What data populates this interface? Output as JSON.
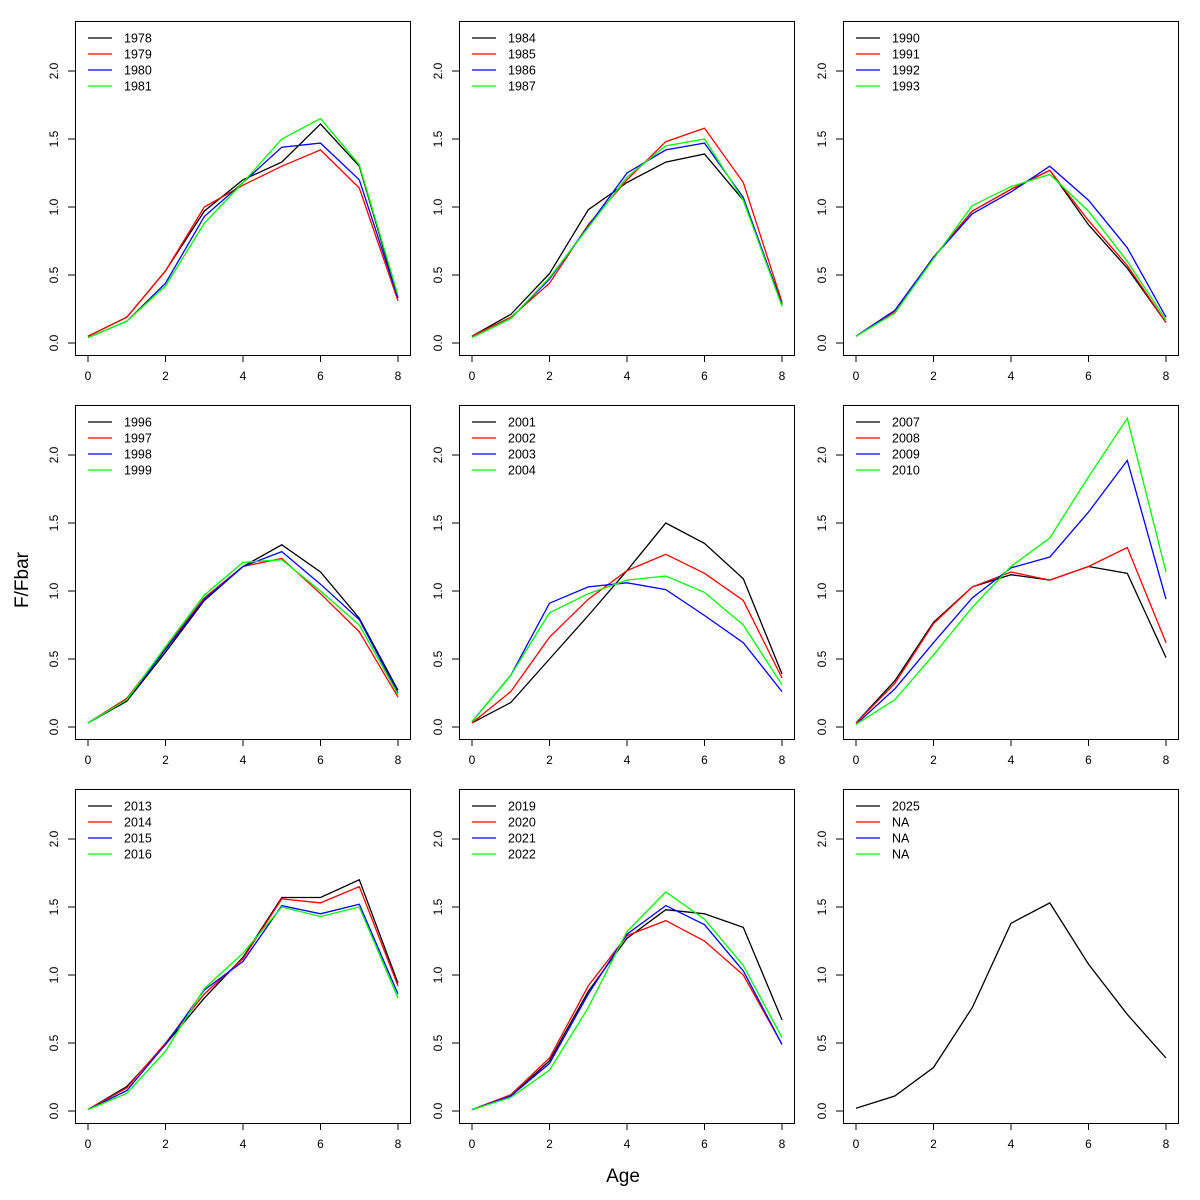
{
  "chart_data": {
    "type": "line",
    "xlabel": "Age",
    "ylabel": "F/Fbar",
    "xlim": [
      0,
      8
    ],
    "ylim": [
      0,
      2.3
    ],
    "x_ticks": [
      "0",
      "2",
      "4",
      "6",
      "8"
    ],
    "y_ticks": [
      "0.0",
      "0.5",
      "1.0",
      "1.5",
      "2.0"
    ],
    "grid": false,
    "legend_position": "top-left",
    "x": [
      0,
      1,
      2,
      3,
      4,
      5,
      6,
      7,
      8
    ],
    "series_colors": [
      "#000000",
      "#ff0000",
      "#0000ff",
      "#00ff00"
    ],
    "panels": [
      {
        "series": [
          {
            "name": "1978",
            "values": [
              0.05,
              0.19,
              0.53,
              0.97,
              1.2,
              1.33,
              1.61,
              1.3,
              0.33
            ]
          },
          {
            "name": "1979",
            "values": [
              0.05,
              0.19,
              0.53,
              1.0,
              1.16,
              1.3,
              1.42,
              1.14,
              0.31
            ]
          },
          {
            "name": "1980",
            "values": [
              0.04,
              0.16,
              0.44,
              0.93,
              1.18,
              1.44,
              1.47,
              1.2,
              0.33
            ]
          },
          {
            "name": "1981",
            "values": [
              0.04,
              0.16,
              0.42,
              0.88,
              1.18,
              1.5,
              1.65,
              1.31,
              0.35
            ]
          }
        ]
      },
      {
        "series": [
          {
            "name": "1984",
            "values": [
              0.05,
              0.21,
              0.51,
              0.98,
              1.18,
              1.33,
              1.39,
              1.05,
              0.29
            ]
          },
          {
            "name": "1985",
            "values": [
              0.05,
              0.19,
              0.44,
              0.87,
              1.2,
              1.48,
              1.58,
              1.18,
              0.3
            ]
          },
          {
            "name": "1986",
            "values": [
              0.04,
              0.18,
              0.47,
              0.86,
              1.25,
              1.42,
              1.47,
              1.07,
              0.28
            ]
          },
          {
            "name": "1987",
            "values": [
              0.04,
              0.18,
              0.48,
              0.85,
              1.22,
              1.45,
              1.5,
              1.05,
              0.27
            ]
          }
        ]
      },
      {
        "series": [
          {
            "name": "1990",
            "values": [
              0.05,
              0.23,
              0.63,
              0.97,
              1.13,
              1.27,
              0.87,
              0.55,
              0.15
            ]
          },
          {
            "name": "1991",
            "values": [
              0.05,
              0.23,
              0.63,
              0.97,
              1.13,
              1.27,
              0.9,
              0.57,
              0.15
            ]
          },
          {
            "name": "1992",
            "values": [
              0.05,
              0.24,
              0.63,
              0.95,
              1.11,
              1.3,
              1.05,
              0.7,
              0.19
            ]
          },
          {
            "name": "1993",
            "values": [
              0.05,
              0.22,
              0.62,
              1.01,
              1.15,
              1.24,
              0.97,
              0.6,
              0.17
            ]
          }
        ]
      },
      {
        "series": [
          {
            "name": "1996",
            "values": [
              0.03,
              0.19,
              0.55,
              0.93,
              1.18,
              1.34,
              1.14,
              0.8,
              0.27
            ]
          },
          {
            "name": "1997",
            "values": [
              0.03,
              0.21,
              0.58,
              0.95,
              1.18,
              1.24,
              0.98,
              0.7,
              0.22
            ]
          },
          {
            "name": "1998",
            "values": [
              0.03,
              0.2,
              0.57,
              0.94,
              1.18,
              1.29,
              1.05,
              0.79,
              0.25
            ]
          },
          {
            "name": "1999",
            "values": [
              0.03,
              0.2,
              0.59,
              0.97,
              1.21,
              1.23,
              1.0,
              0.75,
              0.24
            ]
          }
        ]
      },
      {
        "series": [
          {
            "name": "2001",
            "values": [
              0.03,
              0.18,
              0.5,
              0.82,
              1.15,
              1.5,
              1.35,
              1.09,
              0.39
            ]
          },
          {
            "name": "2002",
            "values": [
              0.03,
              0.26,
              0.66,
              0.94,
              1.15,
              1.27,
              1.13,
              0.93,
              0.36
            ]
          },
          {
            "name": "2003",
            "values": [
              0.04,
              0.38,
              0.91,
              1.03,
              1.06,
              1.01,
              0.82,
              0.62,
              0.26
            ]
          },
          {
            "name": "2004",
            "values": [
              0.04,
              0.38,
              0.84,
              0.98,
              1.08,
              1.11,
              0.99,
              0.75,
              0.31
            ]
          }
        ]
      },
      {
        "series": [
          {
            "name": "2007",
            "values": [
              0.03,
              0.34,
              0.77,
              1.03,
              1.12,
              1.08,
              1.18,
              1.13,
              0.51
            ]
          },
          {
            "name": "2008",
            "values": [
              0.03,
              0.32,
              0.76,
              1.03,
              1.14,
              1.08,
              1.18,
              1.32,
              0.62
            ]
          },
          {
            "name": "2009",
            "values": [
              0.02,
              0.28,
              0.62,
              0.95,
              1.17,
              1.25,
              1.58,
              1.96,
              0.94
            ]
          },
          {
            "name": "2010",
            "values": [
              0.02,
              0.2,
              0.53,
              0.88,
              1.18,
              1.39,
              1.84,
              2.27,
              1.14
            ]
          }
        ]
      },
      {
        "series": [
          {
            "name": "2013",
            "values": [
              0.01,
              0.18,
              0.49,
              0.83,
              1.13,
              1.57,
              1.57,
              1.7,
              0.94
            ]
          },
          {
            "name": "2014",
            "values": [
              0.01,
              0.17,
              0.5,
              0.86,
              1.12,
              1.56,
              1.53,
              1.65,
              0.92
            ]
          },
          {
            "name": "2015",
            "values": [
              0.01,
              0.15,
              0.49,
              0.89,
              1.1,
              1.51,
              1.45,
              1.52,
              0.86
            ]
          },
          {
            "name": "2016",
            "values": [
              0.01,
              0.13,
              0.44,
              0.9,
              1.16,
              1.5,
              1.43,
              1.5,
              0.83
            ]
          }
        ]
      },
      {
        "series": [
          {
            "name": "2019",
            "values": [
              0.01,
              0.11,
              0.37,
              0.88,
              1.27,
              1.48,
              1.45,
              1.35,
              0.67
            ]
          },
          {
            "name": "2020",
            "values": [
              0.01,
              0.12,
              0.39,
              0.92,
              1.29,
              1.4,
              1.25,
              1.0,
              0.49
            ]
          },
          {
            "name": "2021",
            "values": [
              0.01,
              0.11,
              0.35,
              0.86,
              1.3,
              1.51,
              1.37,
              1.03,
              0.49
            ]
          },
          {
            "name": "2022",
            "values": [
              0.01,
              0.1,
              0.3,
              0.76,
              1.32,
              1.61,
              1.41,
              1.07,
              0.54
            ]
          }
        ]
      },
      {
        "series": [
          {
            "name": "2025",
            "values": [
              0.02,
              0.11,
              0.32,
              0.76,
              1.38,
              1.53,
              1.08,
              0.71,
              0.39
            ]
          },
          {
            "name": "NA",
            "values": null
          },
          {
            "name": "NA",
            "values": null
          },
          {
            "name": "NA",
            "values": null
          }
        ]
      }
    ]
  }
}
